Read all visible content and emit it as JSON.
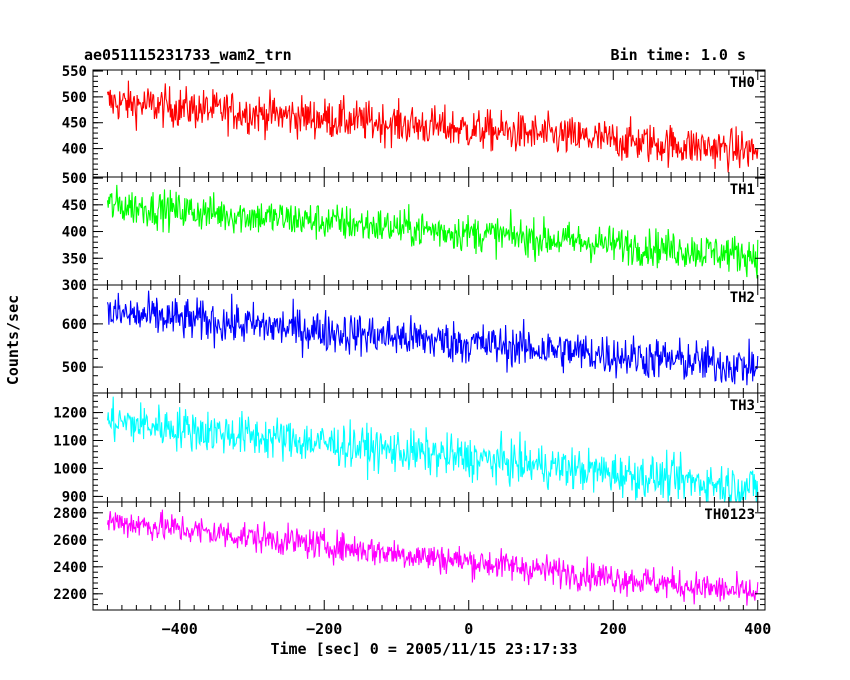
{
  "chart_data": {
    "type": "line",
    "title": "ae051115231733_wam2_trn",
    "bin_time_label": "Bin time: 1.0 s",
    "xlabel": "Time [sec] 0 = 2005/11/15 23:17:33",
    "ylabel": "Counts/sec",
    "xlim": [
      -520,
      410
    ],
    "x_ticks": [
      -400,
      -200,
      0,
      200,
      400
    ],
    "x_range_data": [
      -500,
      400
    ],
    "line_color_note": "each panel is a noisy 1 s binned light curve with a declining trend",
    "panels": [
      {
        "name": "TH0",
        "color": "#ff0000",
        "ylim": [
          345,
          552
        ],
        "y_ticks": [
          400,
          450,
          500,
          550
        ],
        "trend_start": 490,
        "trend_end": 395,
        "noise": 28,
        "x": [
          -500,
          -400,
          -300,
          -200,
          -100,
          0,
          100,
          200,
          300,
          400
        ],
        "y": [
          490,
          479,
          469,
          458,
          448,
          437,
          427,
          416,
          406,
          395
        ]
      },
      {
        "name": "TH1",
        "color": "#00ff00",
        "ylim": [
          300,
          502
        ],
        "y_ticks": [
          300,
          350,
          400,
          450,
          500
        ],
        "trend_start": 450,
        "trend_end": 355,
        "noise": 25,
        "x": [
          -500,
          -400,
          -300,
          -200,
          -100,
          0,
          100,
          200,
          300,
          400
        ],
        "y": [
          450,
          439,
          429,
          418,
          408,
          397,
          387,
          376,
          366,
          355
        ]
      },
      {
        "name": "TH2",
        "color": "#0000ff",
        "ylim": [
          440,
          690
        ],
        "y_ticks": [
          500,
          600
        ],
        "trend_start": 625,
        "trend_end": 500,
        "noise": 35,
        "x": [
          -500,
          -400,
          -300,
          -200,
          -100,
          0,
          100,
          200,
          300,
          400
        ],
        "y": [
          625,
          611,
          597,
          583,
          569,
          556,
          542,
          528,
          514,
          500
        ]
      },
      {
        "name": "TH3",
        "color": "#00ffff",
        "ylim": [
          880,
          1270
        ],
        "y_ticks": [
          900,
          1000,
          1100,
          1200
        ],
        "trend_start": 1170,
        "trend_end": 930,
        "noise": 55,
        "x": [
          -500,
          -400,
          -300,
          -200,
          -100,
          0,
          100,
          200,
          300,
          400
        ],
        "y": [
          1170,
          1143,
          1117,
          1090,
          1063,
          1037,
          1010,
          983,
          957,
          930
        ]
      },
      {
        "name": "TH0123",
        "color": "#ff00ff",
        "ylim": [
          2080,
          2880
        ],
        "y_ticks": [
          2200,
          2400,
          2600,
          2800
        ],
        "trend_start": 2740,
        "trend_end": 2200,
        "noise": 80,
        "x": [
          -500,
          -400,
          -300,
          -200,
          -100,
          0,
          100,
          200,
          300,
          400
        ],
        "y": [
          2740,
          2680,
          2620,
          2560,
          2500,
          2440,
          2380,
          2320,
          2260,
          2200
        ]
      }
    ]
  }
}
